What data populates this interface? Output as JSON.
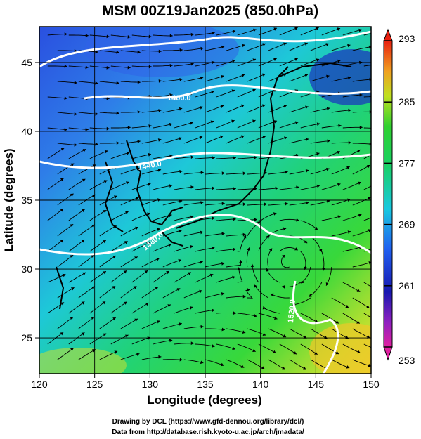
{
  "title": "MSM 00Z19Jan2025 (850.0hPa)",
  "x_axis": {
    "label": "Longitude (degrees)",
    "range": [
      120,
      150
    ],
    "ticks": [
      "120",
      "125",
      "130",
      "135",
      "140",
      "145",
      "150"
    ]
  },
  "y_axis": {
    "label": "Latitude  (degrees)",
    "range": [
      22.4,
      47.6
    ],
    "ticks": [
      "25",
      "30",
      "35",
      "40",
      "45"
    ]
  },
  "colorbar": {
    "range": [
      253,
      293
    ],
    "ticks": [
      "293",
      "285",
      "277",
      "269",
      "261",
      "253"
    ]
  },
  "contour_labels": [
    "1400.0",
    "1440.0",
    "1480.0",
    "1520.0"
  ],
  "credits": {
    "line1": "Drawing by DCL (https://www.gfd-dennou.org/library/dcl/)",
    "line2": "Data from http://database.rish.kyoto-u.ac.jp/arch/jmadata/"
  },
  "colors": {
    "cold": "#1030c0",
    "mid": "#18c8d0",
    "green": "#20d040",
    "warm": "#e8e820",
    "contour": "#ffffff",
    "streamline": "#000000"
  }
}
